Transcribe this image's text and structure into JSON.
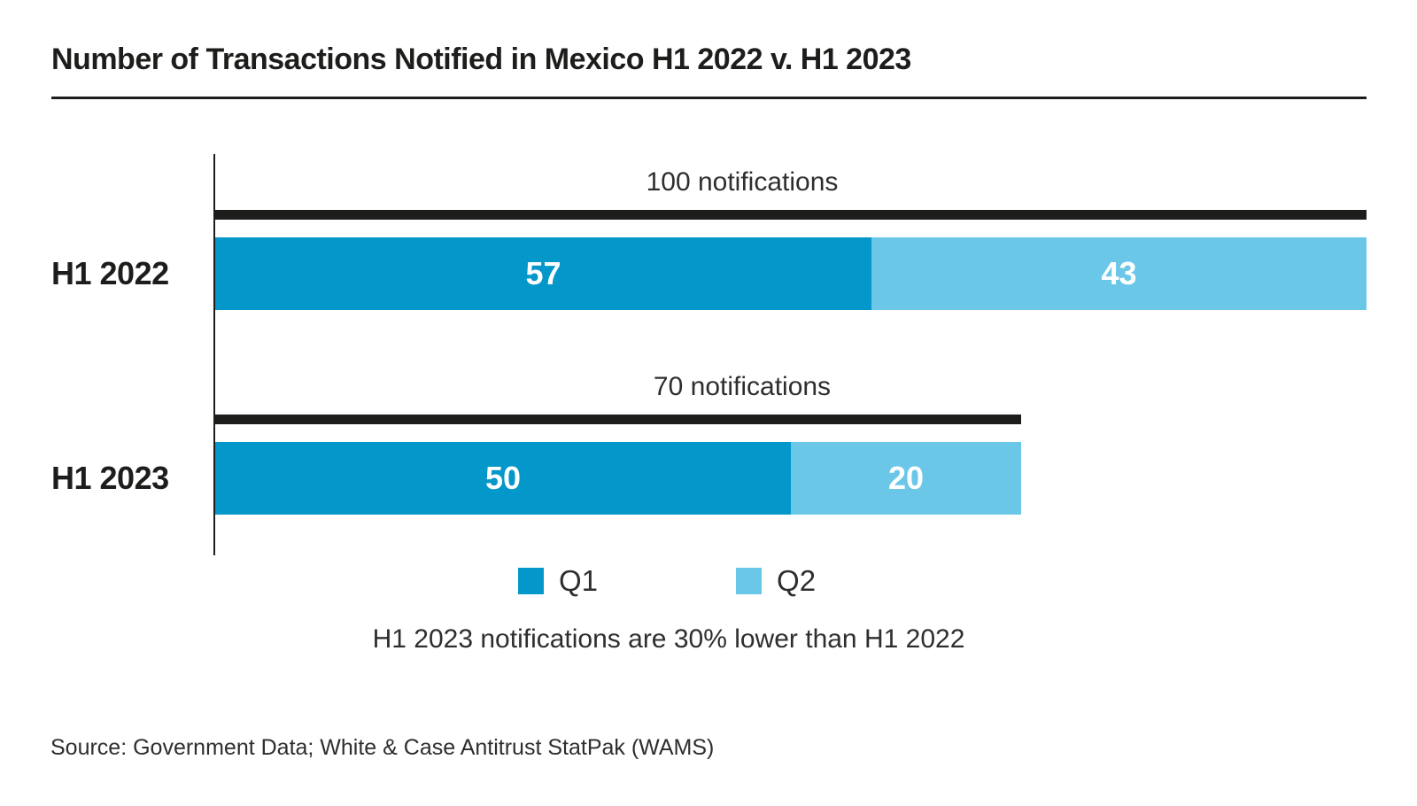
{
  "page": {
    "title": "Number of Transactions Notified in Mexico H1 2022 v. H1 2023",
    "annotation": "H1 2023 notifications are 30% lower than H1 2022",
    "source": "Source: Government Data; White & Case Antitrust StatPak (WAMS)"
  },
  "colors": {
    "q1": "#0497ca",
    "q2": "#6bc7e8",
    "line_black": "#1d1d1b",
    "text_dark": "#2e2e2d",
    "value_text": "#ffffff"
  },
  "chart_data": {
    "type": "bar",
    "orientation": "horizontal",
    "stacked": true,
    "title": "Number of Transactions Notified in Mexico H1 2022 v. H1 2023",
    "categories": [
      "H1 2022",
      "H1 2023"
    ],
    "series": [
      {
        "name": "Q1",
        "color": "#0497ca",
        "values": [
          57,
          50
        ]
      },
      {
        "name": "Q2",
        "color": "#6bc7e8",
        "values": [
          43,
          20
        ]
      }
    ],
    "totals": [
      100,
      70
    ],
    "total_labels": [
      "100 notifications",
      "70 notifications"
    ],
    "xlim": [
      0,
      100
    ],
    "grid": false,
    "legend_position": "bottom",
    "annotation": "H1 2023 notifications are 30% lower than H1 2022",
    "source": "Source: Government Data; White & Case Antitrust StatPak (WAMS)"
  }
}
